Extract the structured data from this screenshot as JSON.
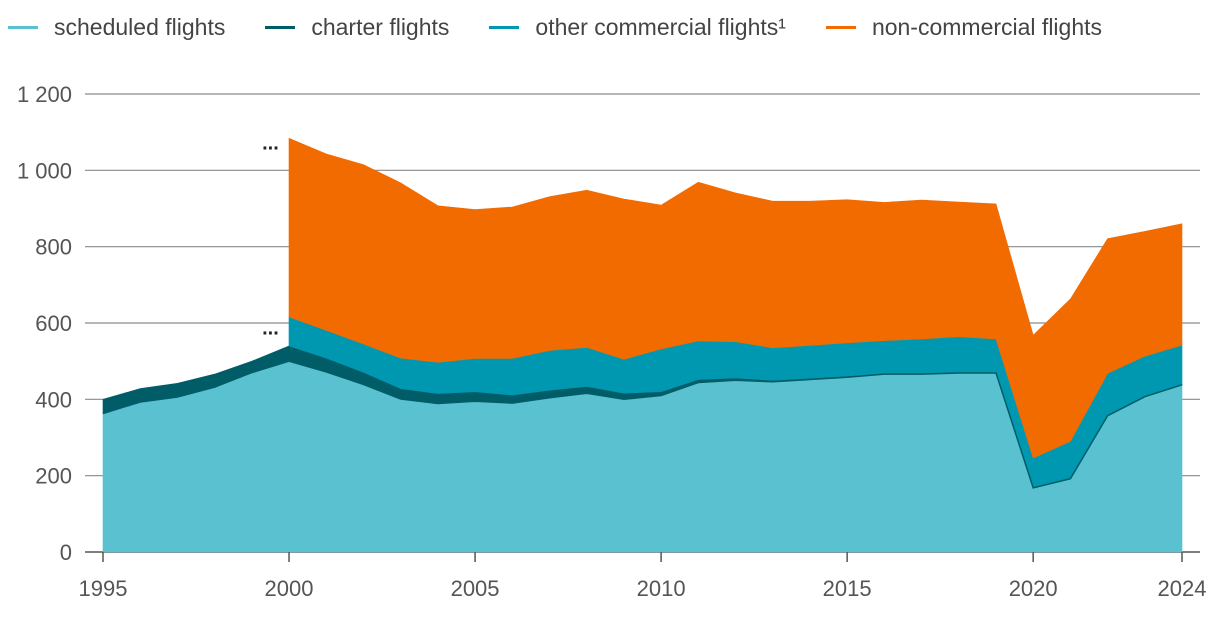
{
  "chart_data": {
    "type": "area",
    "stacked": true,
    "title": "",
    "xlabel": "",
    "ylabel": "",
    "xlim": [
      1995,
      2024
    ],
    "ylim": [
      0,
      1200
    ],
    "yticks": [
      0,
      200,
      400,
      600,
      800,
      1000,
      1200
    ],
    "ytick_labels": [
      "0",
      "200",
      "400",
      "600",
      "800",
      "1 000",
      "1 200"
    ],
    "xticks": [
      1995,
      2000,
      2005,
      2010,
      2015,
      2020,
      2024
    ],
    "xtick_labels": [
      "1995",
      "2000",
      "2005",
      "2010",
      "2015",
      "2020",
      "2024"
    ],
    "grid": true,
    "legend_position": "top",
    "missing_marker": "...",
    "missing_marker_points": [
      {
        "x": 1999.5,
        "y": 1055
      },
      {
        "x": 1999.5,
        "y": 570
      }
    ],
    "x": [
      1995,
      1996,
      1997,
      1998,
      1999,
      2000,
      2001,
      2002,
      2003,
      2004,
      2005,
      2006,
      2007,
      2008,
      2009,
      2010,
      2011,
      2012,
      2013,
      2014,
      2015,
      2016,
      2017,
      2018,
      2019,
      2020,
      2021,
      2022,
      2023,
      2024
    ],
    "series": [
      {
        "name": "scheduled flights",
        "color": "#59c1cf",
        "values": [
          363,
          393,
          406,
          432,
          470,
          500,
          472,
          439,
          401,
          389,
          395,
          390,
          404,
          416,
          400,
          410,
          444,
          450,
          446,
          452,
          458,
          466,
          466,
          469,
          469,
          168,
          192,
          357,
          407,
          438
        ]
      },
      {
        "name": "charter flights",
        "color": "#005d68",
        "values": [
          37,
          35,
          36,
          34,
          30,
          40,
          36,
          32,
          27,
          26,
          25,
          21,
          20,
          18,
          16,
          10,
          8,
          6,
          4,
          3,
          3,
          2,
          2,
          2,
          2,
          1,
          1,
          1,
          1,
          1
        ]
      },
      {
        "name": "other commercial flights¹",
        "color": "#0098b0",
        "values": [
          null,
          null,
          null,
          null,
          null,
          76,
          73,
          74,
          80,
          82,
          87,
          96,
          104,
          102,
          89,
          112,
          101,
          95,
          85,
          86,
          87,
          86,
          90,
          93,
          87,
          77,
          97,
          110,
          105,
          103
        ]
      },
      {
        "name": "non-commercial flights",
        "color": "#f26b00",
        "values": [
          null,
          null,
          null,
          null,
          null,
          468,
          462,
          470,
          459,
          410,
          390,
          397,
          403,
          412,
          420,
          377,
          416,
          390,
          384,
          378,
          375,
          362,
          364,
          353,
          354,
          322,
          373,
          353,
          327,
          318
        ]
      }
    ]
  }
}
